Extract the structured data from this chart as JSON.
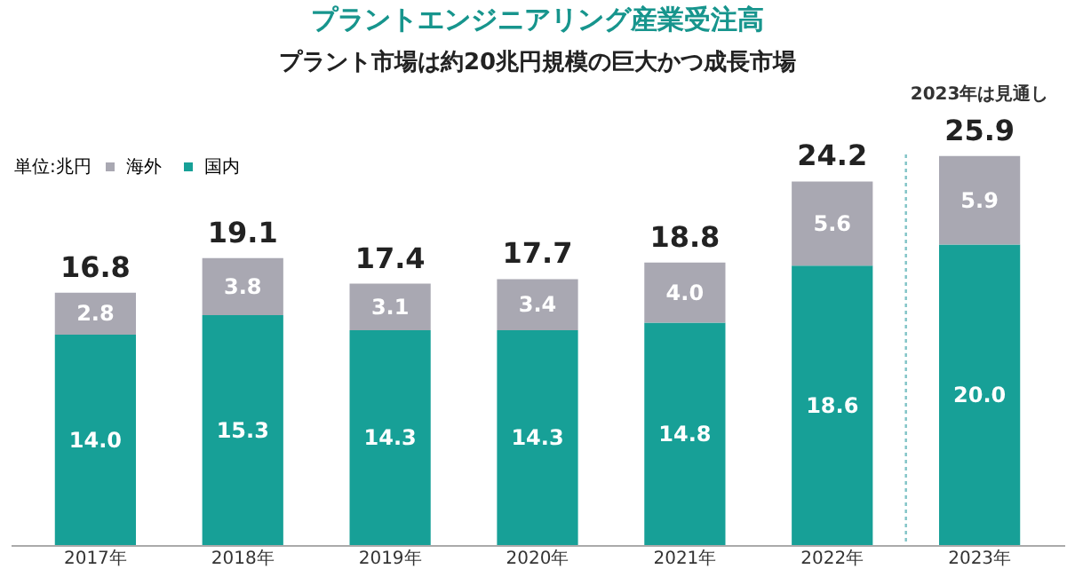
{
  "chart_data": {
    "type": "bar",
    "title": "プラントエンジニアリング産業受注高",
    "subtitle": "プラント市場は約20兆円規模の巨大かつ成長市場",
    "legend_title": "単位:兆円",
    "categories": [
      "2017年",
      "2018年",
      "2019年",
      "2020年",
      "2021年",
      "2022年",
      "2023年"
    ],
    "stacked": true,
    "series": [
      {
        "name": "国内",
        "color": "#17a097",
        "values": [
          14.0,
          15.3,
          14.3,
          14.3,
          14.8,
          18.6,
          20.0
        ],
        "value_labels": [
          "14.0",
          "15.3",
          "14.3",
          "14.3",
          "14.8",
          "18.6",
          "20.0"
        ]
      },
      {
        "name": "海外",
        "color": "#a9a8b2",
        "values": [
          2.8,
          3.8,
          3.1,
          3.4,
          4.0,
          5.6,
          5.9
        ],
        "value_labels": [
          "2.8",
          "3.8",
          "3.1",
          "3.4",
          "4.0",
          "5.6",
          "5.9"
        ]
      }
    ],
    "totals": [
      "16.8",
      "19.1",
      "17.4",
      "17.7",
      "18.8",
      "24.2",
      "25.9"
    ],
    "legend": "top left",
    "grid": false,
    "ref_lines": [
      {
        "axis": "x",
        "value": "2023年",
        "label": "2023年は見通し",
        "line_style": "dotted",
        "color": "#7fc3c6"
      }
    ]
  }
}
